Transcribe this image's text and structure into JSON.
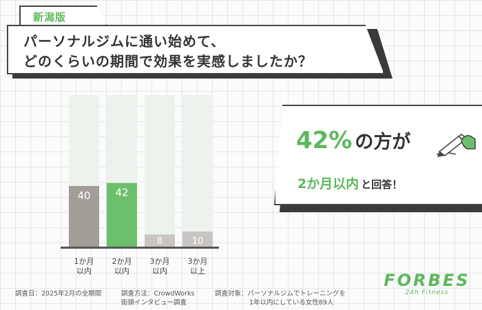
{
  "tag": "新潟版",
  "title": {
    "line1": "パーソナルジムに通い始めて、",
    "line2": "どのくらいの期間で効果を実感しましたか？"
  },
  "callout": {
    "headline_pct": "42%",
    "headline_rest": "の方が",
    "sub_main": "2か月以内",
    "sub_rest": "と回答！"
  },
  "chart_data": {
    "type": "bar",
    "categories": [
      [
        "1か月",
        "以内"
      ],
      [
        "2か月",
        "以内"
      ],
      [
        "3か月",
        "以内"
      ],
      [
        "3か月",
        "以上"
      ]
    ],
    "values": [
      40,
      42,
      8,
      10
    ],
    "data_labels": [
      "40",
      "42",
      "8",
      "10"
    ],
    "ylim": [
      0,
      100
    ],
    "highlight_index": 1,
    "colors": {
      "default": "#a39d98",
      "highlight": "#6cc06c",
      "track": "#edf2ed",
      "baseline": "#555555",
      "label_on_bar": "#ffffff",
      "label_on_light": "#888888"
    }
  },
  "footer": {
    "survey_date": "調査日：2025年2月の全期間",
    "method_line1": "調査方法：CrowdWorks",
    "method_line2": "街頭インタビュー調査",
    "target_line1": "調査対象：パーソナルジムでトレーニングを",
    "target_line2": "1年以内にしている女性89人"
  },
  "logo": {
    "main": "FORBES",
    "sub": "24h Fitness"
  },
  "icons": {
    "pen": "pen-writing-icon"
  }
}
